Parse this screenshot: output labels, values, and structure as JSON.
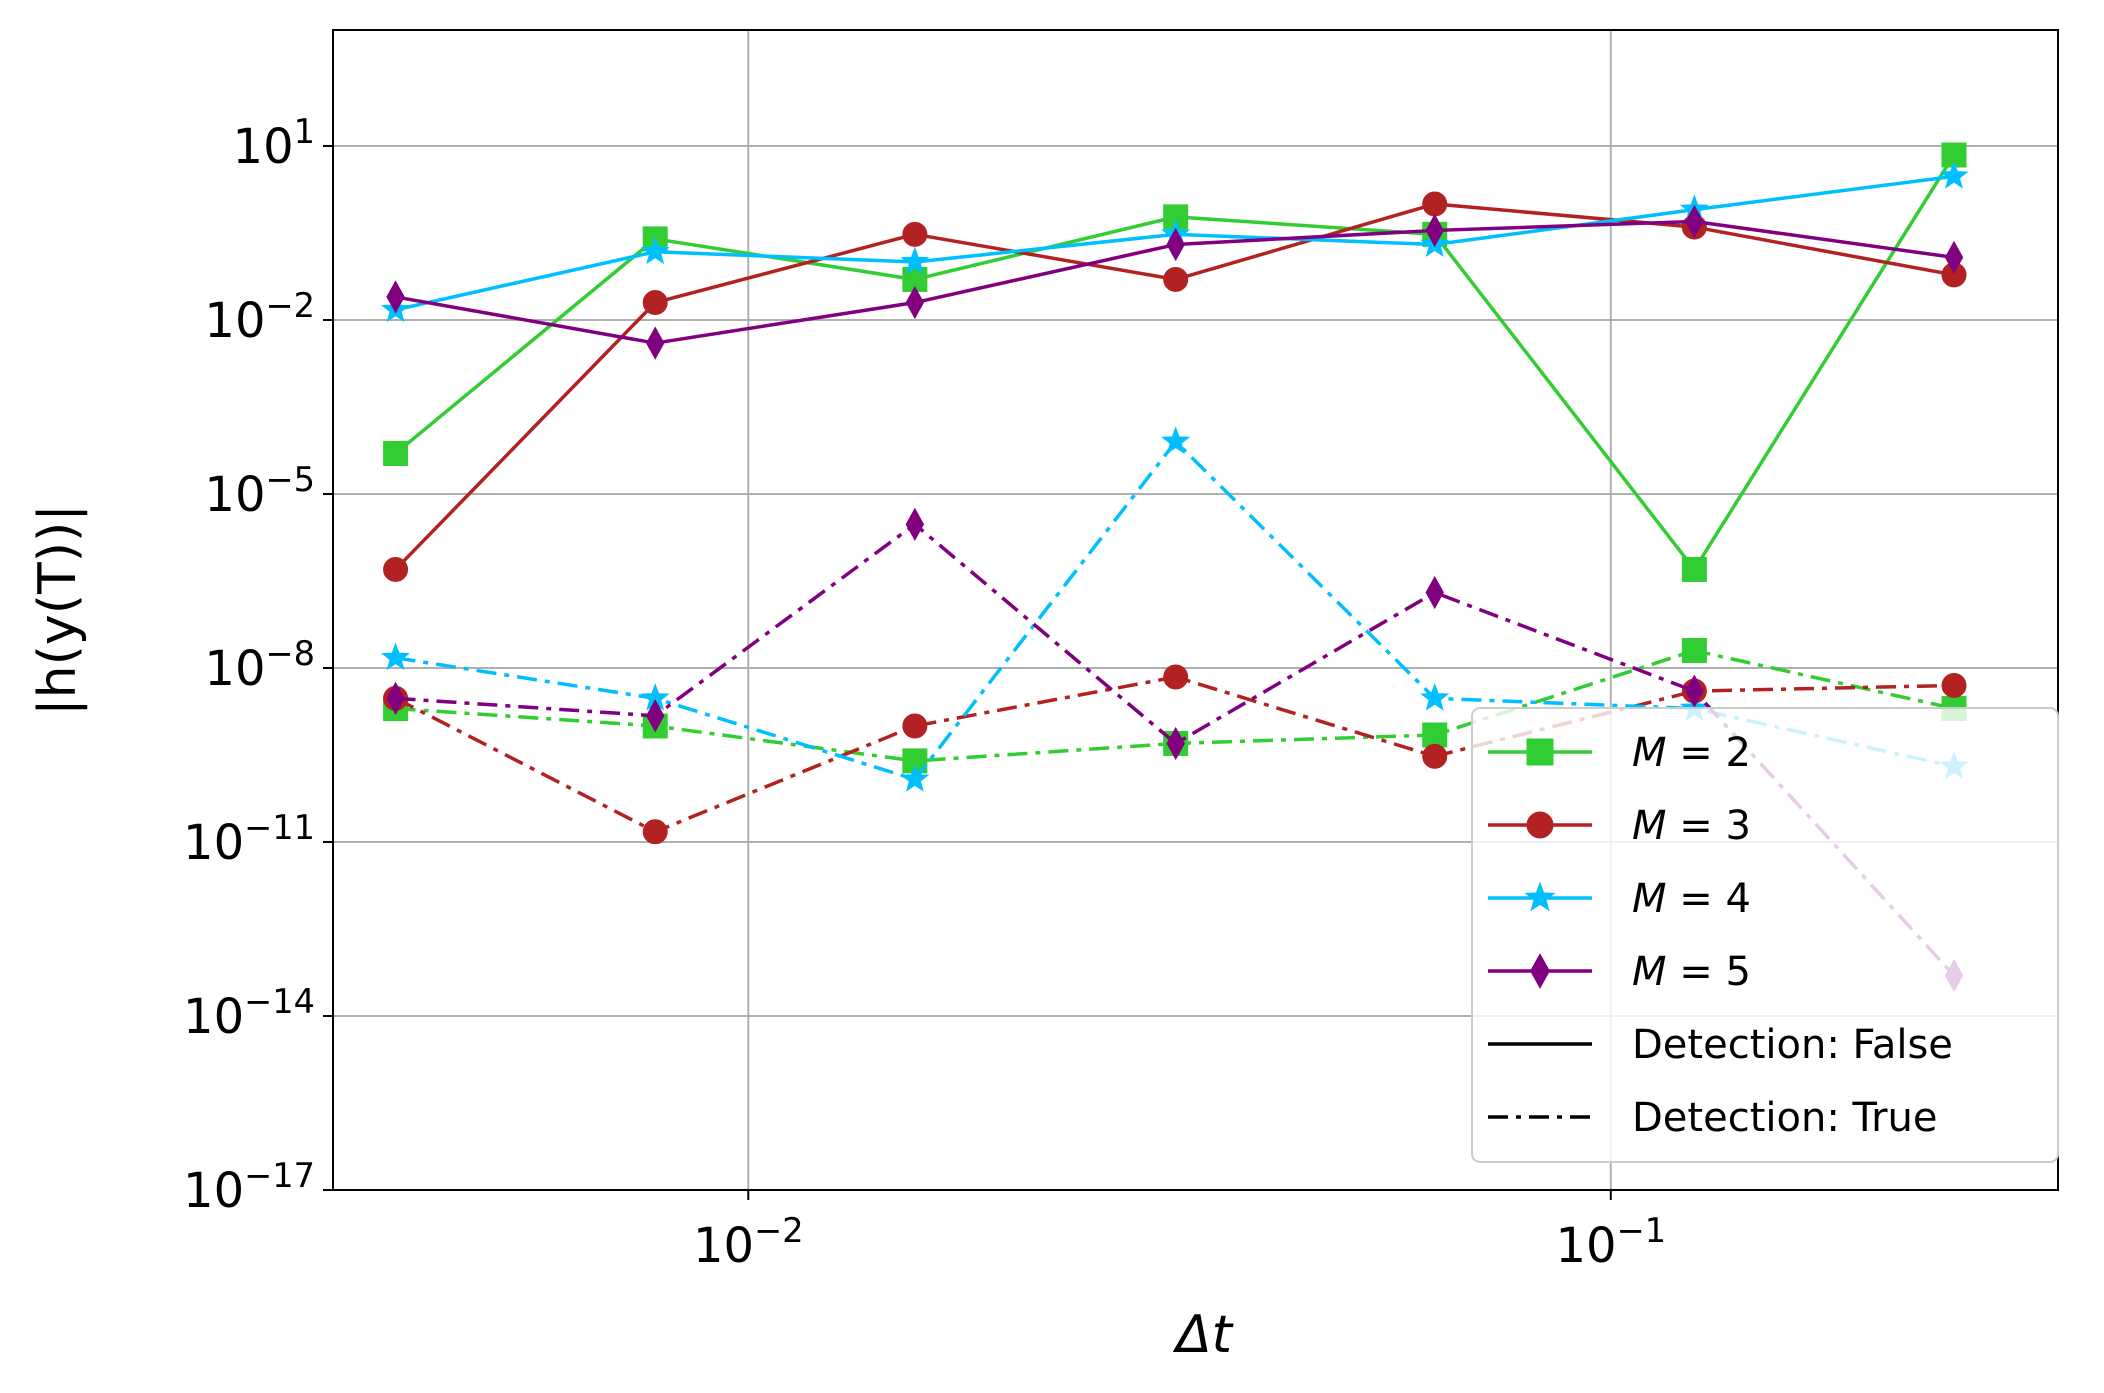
{
  "chart_data": {
    "type": "line",
    "xlabel": "Δt",
    "ylabel": "|h(y(T))|",
    "xscale": "log",
    "yscale": "log",
    "xlim": [
      0.0033,
      0.33
    ],
    "ylim": [
      1e-17,
      1000.0
    ],
    "x_ticks": [
      {
        "value": 0.01,
        "base": "10",
        "exp": "−2"
      },
      {
        "value": 0.1,
        "base": "10",
        "exp": "−1"
      }
    ],
    "y_ticks": [
      {
        "value": 1e-17,
        "base": "10",
        "exp": "−17"
      },
      {
        "value": 1e-14,
        "base": "10",
        "exp": "−14"
      },
      {
        "value": 1e-11,
        "base": "10",
        "exp": "−11"
      },
      {
        "value": 1e-08,
        "base": "10",
        "exp": "−8"
      },
      {
        "value": 1e-05,
        "base": "10",
        "exp": "−5"
      },
      {
        "value": 0.01,
        "base": "10",
        "exp": "−2"
      },
      {
        "value": 10,
        "base": "10",
        "exp": "1"
      }
    ],
    "grid": true,
    "legend_position": "lower-right",
    "x": [
      0.0039,
      0.0078,
      0.0156,
      0.0313,
      0.0625,
      0.125,
      0.25
    ],
    "series": [
      {
        "label": "M = 2",
        "m": "2",
        "detection": "False",
        "color": "#32cd32",
        "marker": "square",
        "style": "solid",
        "values": [
          5e-05,
          0.25,
          0.05,
          0.6,
          0.3,
          5e-07,
          7
        ]
      },
      {
        "label": "M = 3",
        "m": "3",
        "detection": "False",
        "color": "#b22222",
        "marker": "circle",
        "style": "solid",
        "values": [
          5e-07,
          0.02,
          0.3,
          0.05,
          1,
          0.4,
          0.06
        ]
      },
      {
        "label": "M = 4",
        "m": "4",
        "detection": "False",
        "color": "#00bfff",
        "marker": "star",
        "style": "solid",
        "values": [
          0.015,
          0.15,
          0.1,
          0.3,
          0.2,
          0.8,
          3
        ]
      },
      {
        "label": "M = 5",
        "m": "5",
        "detection": "False",
        "color": "#800080",
        "marker": "diamond",
        "style": "solid",
        "values": [
          0.025,
          0.004,
          0.02,
          0.2,
          0.35,
          0.5,
          0.12
        ]
      },
      {
        "label": "M = 2",
        "m": "2",
        "detection": "True",
        "color": "#32cd32",
        "marker": "square",
        "style": "dashdot",
        "values": [
          2e-09,
          1e-09,
          2.5e-10,
          5e-10,
          7e-10,
          2e-08,
          2e-09
        ]
      },
      {
        "label": "M = 3",
        "m": "3",
        "detection": "True",
        "color": "#b22222",
        "marker": "circle",
        "style": "dashdot",
        "values": [
          3e-09,
          1.5e-11,
          1e-09,
          7e-09,
          3e-10,
          4e-09,
          5e-09
        ]
      },
      {
        "label": "M = 4",
        "m": "4",
        "detection": "True",
        "color": "#00bfff",
        "marker": "star",
        "style": "dashdot",
        "values": [
          1.5e-08,
          3e-09,
          1.2e-10,
          8e-05,
          3e-09,
          2e-09,
          2e-10
        ]
      },
      {
        "label": "M = 5",
        "m": "5",
        "detection": "True",
        "color": "#800080",
        "marker": "diamond",
        "style": "dashdot",
        "values": [
          3e-09,
          1.5e-09,
          3e-06,
          5e-10,
          2e-07,
          4e-09,
          5e-14
        ]
      }
    ],
    "legend": [
      {
        "kind": "series",
        "name": "M",
        "value": "2",
        "color": "#32cd32",
        "marker": "square"
      },
      {
        "kind": "series",
        "name": "M",
        "value": "3",
        "color": "#b22222",
        "marker": "circle"
      },
      {
        "kind": "series",
        "name": "M",
        "value": "4",
        "color": "#00bfff",
        "marker": "star"
      },
      {
        "kind": "series",
        "name": "M",
        "value": "5",
        "color": "#800080",
        "marker": "diamond"
      },
      {
        "kind": "style",
        "style": "solid",
        "text": "Detection: False"
      },
      {
        "kind": "style",
        "style": "dashdot",
        "text": "Detection: True"
      }
    ]
  }
}
